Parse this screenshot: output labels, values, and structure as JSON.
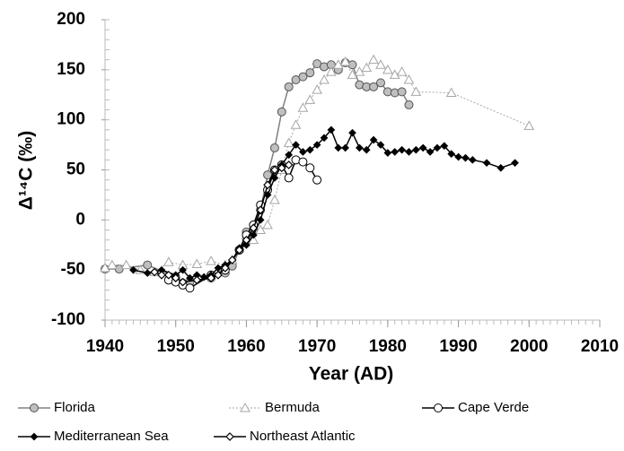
{
  "chart_data": {
    "type": "line",
    "xlabel": "Year (AD)",
    "ylabel": "Δ¹⁴C (‰)",
    "xlim": [
      1940,
      2010
    ],
    "xticks": [
      1940,
      1950,
      1960,
      1970,
      1980,
      1990,
      2000,
      2010
    ],
    "ylim": [
      -100,
      200
    ],
    "yticks": [
      -100,
      -50,
      0,
      50,
      100,
      150,
      200
    ],
    "series": [
      {
        "name": "Florida",
        "color": "#808080",
        "marker": "circle-filled",
        "line": "solid",
        "x": [
          1940,
          1942,
          1946,
          1950,
          1951,
          1952,
          1955,
          1957,
          1958,
          1959,
          1960,
          1961,
          1962,
          1963,
          1964,
          1965,
          1966,
          1967,
          1968,
          1969,
          1970,
          1971,
          1972,
          1973,
          1974,
          1975,
          1976,
          1977,
          1978,
          1979,
          1980,
          1981,
          1982,
          1983
        ],
        "values": [
          -49,
          -49,
          -45,
          -57,
          -63,
          -62,
          -58,
          -53,
          -46,
          -30,
          -12,
          -10,
          10,
          45,
          72,
          108,
          133,
          140,
          143,
          147,
          156,
          153,
          155,
          150,
          157,
          155,
          135,
          133,
          133,
          137,
          128,
          127,
          128,
          115
        ]
      },
      {
        "name": "Bermuda",
        "color": "#a6a6a6",
        "marker": "triangle",
        "line": "dotted",
        "x": [
          1940,
          1941,
          1943,
          1945,
          1947,
          1949,
          1951,
          1953,
          1955,
          1957,
          1958,
          1960,
          1961,
          1962,
          1963,
          1964,
          1965,
          1966,
          1967,
          1968,
          1969,
          1970,
          1971,
          1972,
          1973,
          1974,
          1975,
          1976,
          1977,
          1978,
          1979,
          1980,
          1981,
          1982,
          1983,
          1984,
          1989,
          2000
        ],
        "values": [
          -48,
          -45,
          -45,
          -50,
          -52,
          -42,
          -45,
          -44,
          -41,
          -45,
          -40,
          -15,
          -20,
          -10,
          -5,
          20,
          50,
          77,
          95,
          112,
          120,
          130,
          140,
          148,
          155,
          158,
          145,
          148,
          152,
          160,
          155,
          150,
          145,
          148,
          140,
          128,
          127,
          94
        ]
      },
      {
        "name": "Cape Verde",
        "color": "#000000",
        "marker": "circle-open",
        "line": "solid",
        "x": [
          1949,
          1950,
          1951,
          1952,
          1955,
          1957,
          1959,
          1960,
          1961,
          1962,
          1963,
          1964,
          1965,
          1966,
          1967,
          1968,
          1969,
          1970
        ],
        "values": [
          -60,
          -62,
          -65,
          -68,
          -55,
          -50,
          -30,
          -15,
          -5,
          15,
          30,
          50,
          55,
          42,
          60,
          58,
          52,
          40
        ]
      },
      {
        "name": "Mediterranean Sea",
        "color": "#000000",
        "marker": "diamond-filled",
        "line": "solid",
        "x": [
          1944,
          1946,
          1948,
          1950,
          1951,
          1952,
          1953,
          1954,
          1955,
          1956,
          1957,
          1958,
          1959,
          1960,
          1961,
          1962,
          1963,
          1964,
          1965,
          1966,
          1967,
          1968,
          1969,
          1970,
          1971,
          1972,
          1973,
          1974,
          1975,
          1976,
          1977,
          1978,
          1979,
          1980,
          1981,
          1982,
          1983,
          1984,
          1985,
          1986,
          1987,
          1988,
          1989,
          1990,
          1991,
          1992,
          1994,
          1996,
          1998
        ],
        "values": [
          -50,
          -53,
          -50,
          -55,
          -50,
          -58,
          -55,
          -57,
          -55,
          -48,
          -45,
          -40,
          -28,
          -25,
          -15,
          0,
          25,
          42,
          55,
          65,
          75,
          68,
          70,
          75,
          82,
          90,
          72,
          72,
          87,
          72,
          70,
          80,
          75,
          67,
          68,
          70,
          68,
          70,
          72,
          68,
          72,
          74,
          66,
          63,
          62,
          60,
          57,
          52,
          57
        ]
      },
      {
        "name": "Northeast Atlantic",
        "color": "#000000",
        "marker": "diamond-open",
        "line": "solid",
        "x": [
          1947,
          1948,
          1949,
          1950,
          1951,
          1953,
          1955,
          1956,
          1957,
          1958,
          1959,
          1960,
          1961,
          1962,
          1963,
          1964,
          1965,
          1966
        ],
        "values": [
          -52,
          -55,
          -55,
          -58,
          -62,
          -60,
          -58,
          -55,
          -48,
          -40,
          -30,
          -20,
          -8,
          10,
          35,
          50,
          52,
          55
        ]
      }
    ]
  }
}
